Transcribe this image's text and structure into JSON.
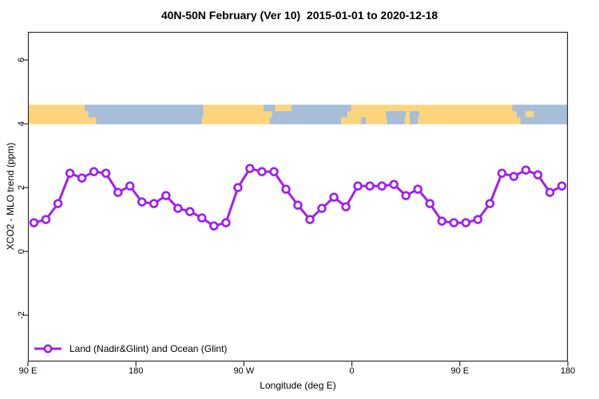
{
  "title": "40N-50N February (Ver 10)  2015-01-01 to 2020-12-18",
  "legend": {
    "label": "Land (Nadir&Glint) and Ocean (Glint)"
  },
  "colors": {
    "line": "#A020F0",
    "marker_fill": "#FFFFFF",
    "land": "#FBD57E",
    "ocean": "#A7BDD8",
    "frame": "#2E2E2E",
    "text": "#000000"
  },
  "chart_data": {
    "type": "line",
    "title": "40N-50N February (Ver 10)  2015-01-01 to 2020-12-18",
    "xlabel": "Longitude (deg E)",
    "ylabel": "XCO2 - MLO trend (ppm)",
    "grid": "off",
    "legend_position": "bottom-left-inside",
    "x_axis": {
      "domain_deg": [
        90,
        540
      ],
      "note": "longitude wraps: 90E -> 180 -> 90W -> 0 -> 90E -> 180",
      "ticks": [
        {
          "deg": 90,
          "label": "90 E"
        },
        {
          "deg": 180,
          "label": "180"
        },
        {
          "deg": 270,
          "label": "90 W"
        },
        {
          "deg": 360,
          "label": "0"
        },
        {
          "deg": 450,
          "label": "90 E"
        },
        {
          "deg": 540,
          "label": "180"
        }
      ]
    },
    "y_axis": {
      "ylim": [
        -3.45,
        6.88
      ],
      "ticks": [
        {
          "value": 6,
          "label": "6"
        },
        {
          "value": 4,
          "label": "4"
        },
        {
          "value": 2,
          "label": "2"
        },
        {
          "value": 0,
          "label": "0"
        },
        {
          "value": -2,
          "label": "-2"
        }
      ]
    },
    "series": [
      {
        "name": "Land (Nadir&Glint) and Ocean (Glint)",
        "marker": "open-circle",
        "x_deg": [
          95,
          105,
          115,
          125,
          135,
          145,
          155,
          165,
          175,
          185,
          195,
          205,
          215,
          225,
          235,
          245,
          255,
          265,
          275,
          285,
          295,
          305,
          315,
          325,
          335,
          345,
          355,
          365,
          375,
          385,
          395,
          405,
          415,
          425,
          435,
          445,
          455,
          465,
          475,
          485,
          495,
          505,
          515,
          525,
          535
        ],
        "values": [
          0.9,
          1.0,
          1.5,
          2.45,
          2.3,
          2.5,
          2.45,
          1.85,
          2.05,
          1.55,
          1.5,
          1.75,
          1.35,
          1.25,
          1.05,
          0.8,
          0.9,
          2.0,
          2.6,
          2.5,
          2.5,
          1.95,
          1.45,
          1.0,
          1.35,
          1.7,
          1.4,
          2.05,
          2.05,
          2.05,
          2.1,
          1.75,
          1.95,
          1.5,
          0.95,
          0.9,
          0.9,
          1.0,
          1.5,
          2.45,
          2.35,
          2.55,
          2.4,
          1.85,
          2.05
        ]
      }
    ],
    "map_band": {
      "y_range": [
        4.0,
        4.6
      ],
      "land_color": "#FBD57E",
      "ocean_color": "#A7BDD8",
      "rows": [
        [
          [
            "land",
            0,
            0.105
          ],
          [
            "ocean",
            0.105,
            0.325
          ],
          [
            "land",
            0.325,
            0.436
          ],
          [
            "ocean",
            0.436,
            0.458
          ],
          [
            "land",
            0.458,
            0.488
          ],
          [
            "ocean",
            0.488,
            0.599
          ],
          [
            "land",
            0.599,
            0.897
          ],
          [
            "ocean",
            0.897,
            1
          ]
        ],
        [
          [
            "land",
            0,
            0.112
          ],
          [
            "ocean",
            0.112,
            0.325
          ],
          [
            "land",
            0.325,
            0.452
          ],
          [
            "ocean",
            0.452,
            0.592
          ],
          [
            "land",
            0.592,
            0.663
          ],
          [
            "ocean",
            0.663,
            0.7
          ],
          [
            "land",
            0.7,
            0.707
          ],
          [
            "ocean",
            0.707,
            0.725
          ],
          [
            "land",
            0.725,
            0.905
          ],
          [
            "ocean",
            0.905,
            0.922
          ],
          [
            "land",
            0.922,
            0.937
          ],
          [
            "ocean",
            0.937,
            1
          ]
        ],
        [
          [
            "land",
            0,
            0.126
          ],
          [
            "ocean",
            0.126,
            0.322
          ],
          [
            "land",
            0.322,
            0.448
          ],
          [
            "ocean",
            0.448,
            0.58
          ],
          [
            "land",
            0.58,
            0.617
          ],
          [
            "ocean",
            0.617,
            0.626
          ],
          [
            "land",
            0.626,
            0.665
          ],
          [
            "ocean",
            0.665,
            0.698
          ],
          [
            "land",
            0.698,
            0.708
          ],
          [
            "ocean",
            0.708,
            0.722
          ],
          [
            "land",
            0.722,
            0.912
          ],
          [
            "ocean",
            0.912,
            1
          ]
        ]
      ]
    }
  }
}
